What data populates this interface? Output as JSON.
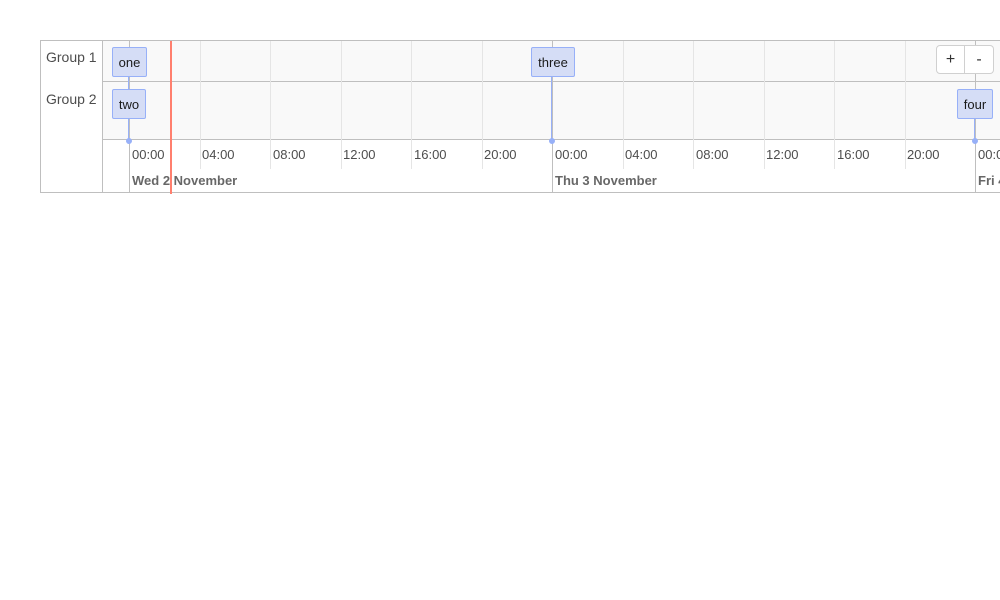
{
  "groups": [
    {
      "label": "Group 1"
    },
    {
      "label": "Group 2"
    }
  ],
  "axis": {
    "minor_labels": [
      "00:00",
      "04:00",
      "08:00",
      "12:00",
      "16:00",
      "20:00",
      "00:00",
      "04:00",
      "08:00",
      "12:00",
      "16:00",
      "20:00",
      "00:0"
    ],
    "major_labels": [
      "Wed 2 November",
      "Thu 3 November",
      "Fri 4"
    ]
  },
  "items": [
    {
      "content": "one",
      "group": "Group 1"
    },
    {
      "content": "two",
      "group": "Group 2"
    },
    {
      "content": "three",
      "group": "Group 1"
    },
    {
      "content": "four",
      "group": "Group 2"
    }
  ],
  "controls": {
    "zoom_in_label": "+",
    "zoom_out_label": "-"
  },
  "colors": {
    "current_time_line": "#ff7f6e",
    "item_background": "#d5ddf6",
    "item_border": "#97b0f8"
  }
}
